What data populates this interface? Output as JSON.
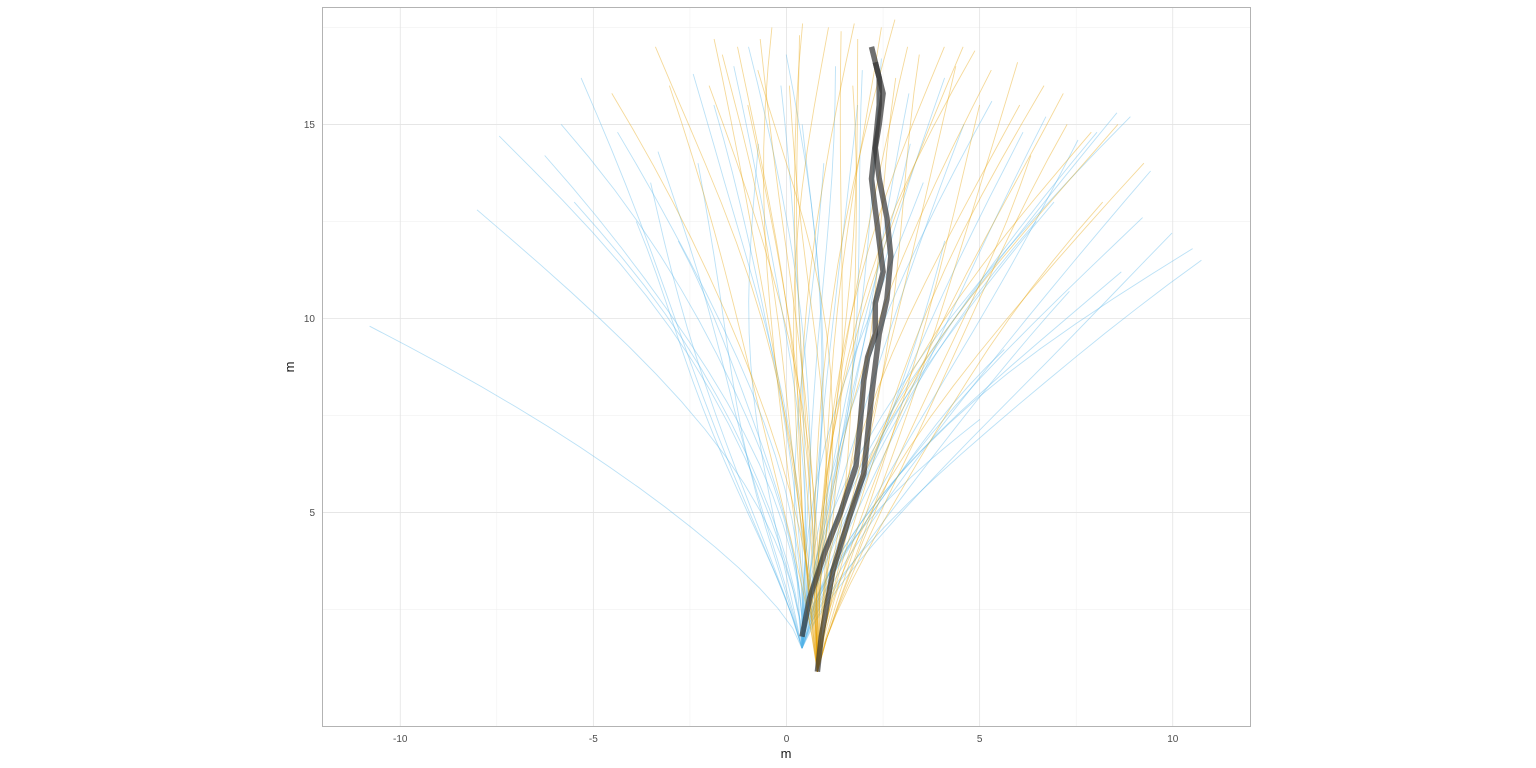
{
  "chart_data": {
    "type": "line",
    "title": "",
    "xlabel": "m",
    "ylabel": "m",
    "xlim": [
      -12,
      12
    ],
    "ylim": [
      -0.5,
      18
    ],
    "x_ticks": [
      -10,
      -5,
      0,
      5,
      10
    ],
    "y_ticks": [
      5,
      10,
      15
    ],
    "x_tick_labels": [
      "-10",
      "-5",
      "0",
      "5",
      "10"
    ],
    "y_tick_labels": [
      "5",
      "10",
      "15"
    ],
    "grid": true,
    "legend": "none",
    "colors": {
      "group_a": "#56B4E9",
      "group_b": "#E69F00",
      "mean": "#333333"
    },
    "groups": [
      {
        "color_key": "group_a",
        "start": [
          0.4,
          1.5
        ],
        "end_points": [
          [
            -10.8,
            9.8
          ],
          [
            -8.0,
            12.8
          ],
          [
            -7.3,
            14.7
          ],
          [
            -6.4,
            14.2
          ],
          [
            -6.0,
            15.0
          ],
          [
            -5.2,
            16.2
          ],
          [
            -4.5,
            14.8
          ],
          [
            -3.5,
            13.5
          ],
          [
            -3.2,
            14.3
          ],
          [
            -2.5,
            16.3
          ],
          [
            -2.0,
            15.5
          ],
          [
            -1.5,
            16.5
          ],
          [
            -0.8,
            14.5
          ],
          [
            -0.2,
            16.0
          ],
          [
            0.5,
            15.0
          ],
          [
            1.2,
            16.5
          ],
          [
            1.8,
            15.5
          ],
          [
            2.5,
            16.7
          ],
          [
            3.2,
            15.8
          ],
          [
            4.0,
            16.2
          ],
          [
            4.6,
            15.0
          ],
          [
            5.3,
            15.6
          ],
          [
            6.0,
            14.8
          ],
          [
            6.7,
            15.2
          ],
          [
            7.5,
            14.6
          ],
          [
            8.0,
            14.8
          ],
          [
            8.6,
            15.3
          ],
          [
            9.0,
            15.2
          ],
          [
            9.4,
            13.8
          ],
          [
            9.1,
            12.6
          ],
          [
            10.0,
            12.2
          ],
          [
            10.4,
            11.8
          ],
          [
            10.9,
            11.5
          ],
          [
            8.6,
            11.2
          ],
          [
            7.3,
            10.7
          ],
          [
            5.8,
            9.2
          ],
          [
            5.0,
            7.4
          ],
          [
            4.0,
            12.0
          ],
          [
            3.5,
            13.5
          ],
          [
            6.5,
            12.5
          ],
          [
            2.0,
            16.4
          ],
          [
            0.0,
            16.8
          ],
          [
            -1.0,
            17.0
          ],
          [
            -3.0,
            12.0
          ],
          [
            -4.0,
            12.5
          ],
          [
            -2.2,
            14.0
          ],
          [
            -5.5,
            13.0
          ],
          [
            1.0,
            14.0
          ],
          [
            3.0,
            14.5
          ],
          [
            7.0,
            13.0
          ]
        ]
      },
      {
        "color_key": "group_b",
        "start": [
          0.8,
          0.9
        ],
        "end_points": [
          [
            -4.6,
            15.8
          ],
          [
            -3.2,
            17.0
          ],
          [
            -3.0,
            16.0
          ],
          [
            -1.9,
            17.2
          ],
          [
            -1.5,
            16.8
          ],
          [
            -1.2,
            17.0
          ],
          [
            -0.7,
            17.2
          ],
          [
            -0.3,
            17.5
          ],
          [
            0.2,
            17.3
          ],
          [
            0.6,
            17.6
          ],
          [
            1.0,
            17.5
          ],
          [
            1.4,
            17.4
          ],
          [
            1.8,
            17.6
          ],
          [
            2.3,
            17.5
          ],
          [
            2.8,
            17.7
          ],
          [
            3.2,
            17.0
          ],
          [
            3.6,
            16.8
          ],
          [
            4.0,
            17.0
          ],
          [
            4.4,
            16.5
          ],
          [
            4.8,
            16.9
          ],
          [
            5.3,
            16.4
          ],
          [
            5.9,
            16.6
          ],
          [
            6.0,
            15.5
          ],
          [
            6.5,
            16.0
          ],
          [
            7.0,
            15.8
          ],
          [
            7.3,
            15.0
          ],
          [
            7.8,
            14.8
          ],
          [
            8.4,
            15.0
          ],
          [
            9.3,
            14.0
          ],
          [
            8.2,
            13.0
          ],
          [
            -2.0,
            16.0
          ],
          [
            -1.0,
            15.5
          ],
          [
            0.0,
            16.0
          ],
          [
            3.0,
            16.2
          ],
          [
            5.0,
            15.5
          ],
          [
            1.5,
            16.0
          ],
          [
            2.0,
            17.2
          ],
          [
            4.6,
            17.0
          ],
          [
            -0.5,
            16.4
          ],
          [
            6.2,
            14.2
          ]
        ]
      }
    ],
    "series": [
      {
        "color_key": "mean",
        "points": [
          [
            0.4,
            1.8
          ],
          [
            0.6,
            2.8
          ],
          [
            1.0,
            4.0
          ],
          [
            1.4,
            5.0
          ],
          [
            1.8,
            6.2
          ],
          [
            1.9,
            7.2
          ],
          [
            2.0,
            8.4
          ],
          [
            2.1,
            9.0
          ],
          [
            2.3,
            9.6
          ],
          [
            2.3,
            10.4
          ],
          [
            2.5,
            11.2
          ],
          [
            2.4,
            12.0
          ],
          [
            2.3,
            12.8
          ],
          [
            2.2,
            13.6
          ],
          [
            2.3,
            14.5
          ],
          [
            2.4,
            15.5
          ],
          [
            2.4,
            16.2
          ],
          [
            2.2,
            17.0
          ]
        ]
      },
      {
        "color_key": "mean",
        "points": [
          [
            0.8,
            0.9
          ],
          [
            0.9,
            1.8
          ],
          [
            1.2,
            3.5
          ],
          [
            1.6,
            4.8
          ],
          [
            2.0,
            6.0
          ],
          [
            2.1,
            7.0
          ],
          [
            2.2,
            8.0
          ],
          [
            2.3,
            8.8
          ],
          [
            2.4,
            9.6
          ],
          [
            2.6,
            10.5
          ],
          [
            2.7,
            11.6
          ],
          [
            2.6,
            12.6
          ],
          [
            2.4,
            13.6
          ],
          [
            2.3,
            14.4
          ],
          [
            2.4,
            15.0
          ],
          [
            2.5,
            15.8
          ],
          [
            2.3,
            16.6
          ]
        ]
      }
    ]
  }
}
